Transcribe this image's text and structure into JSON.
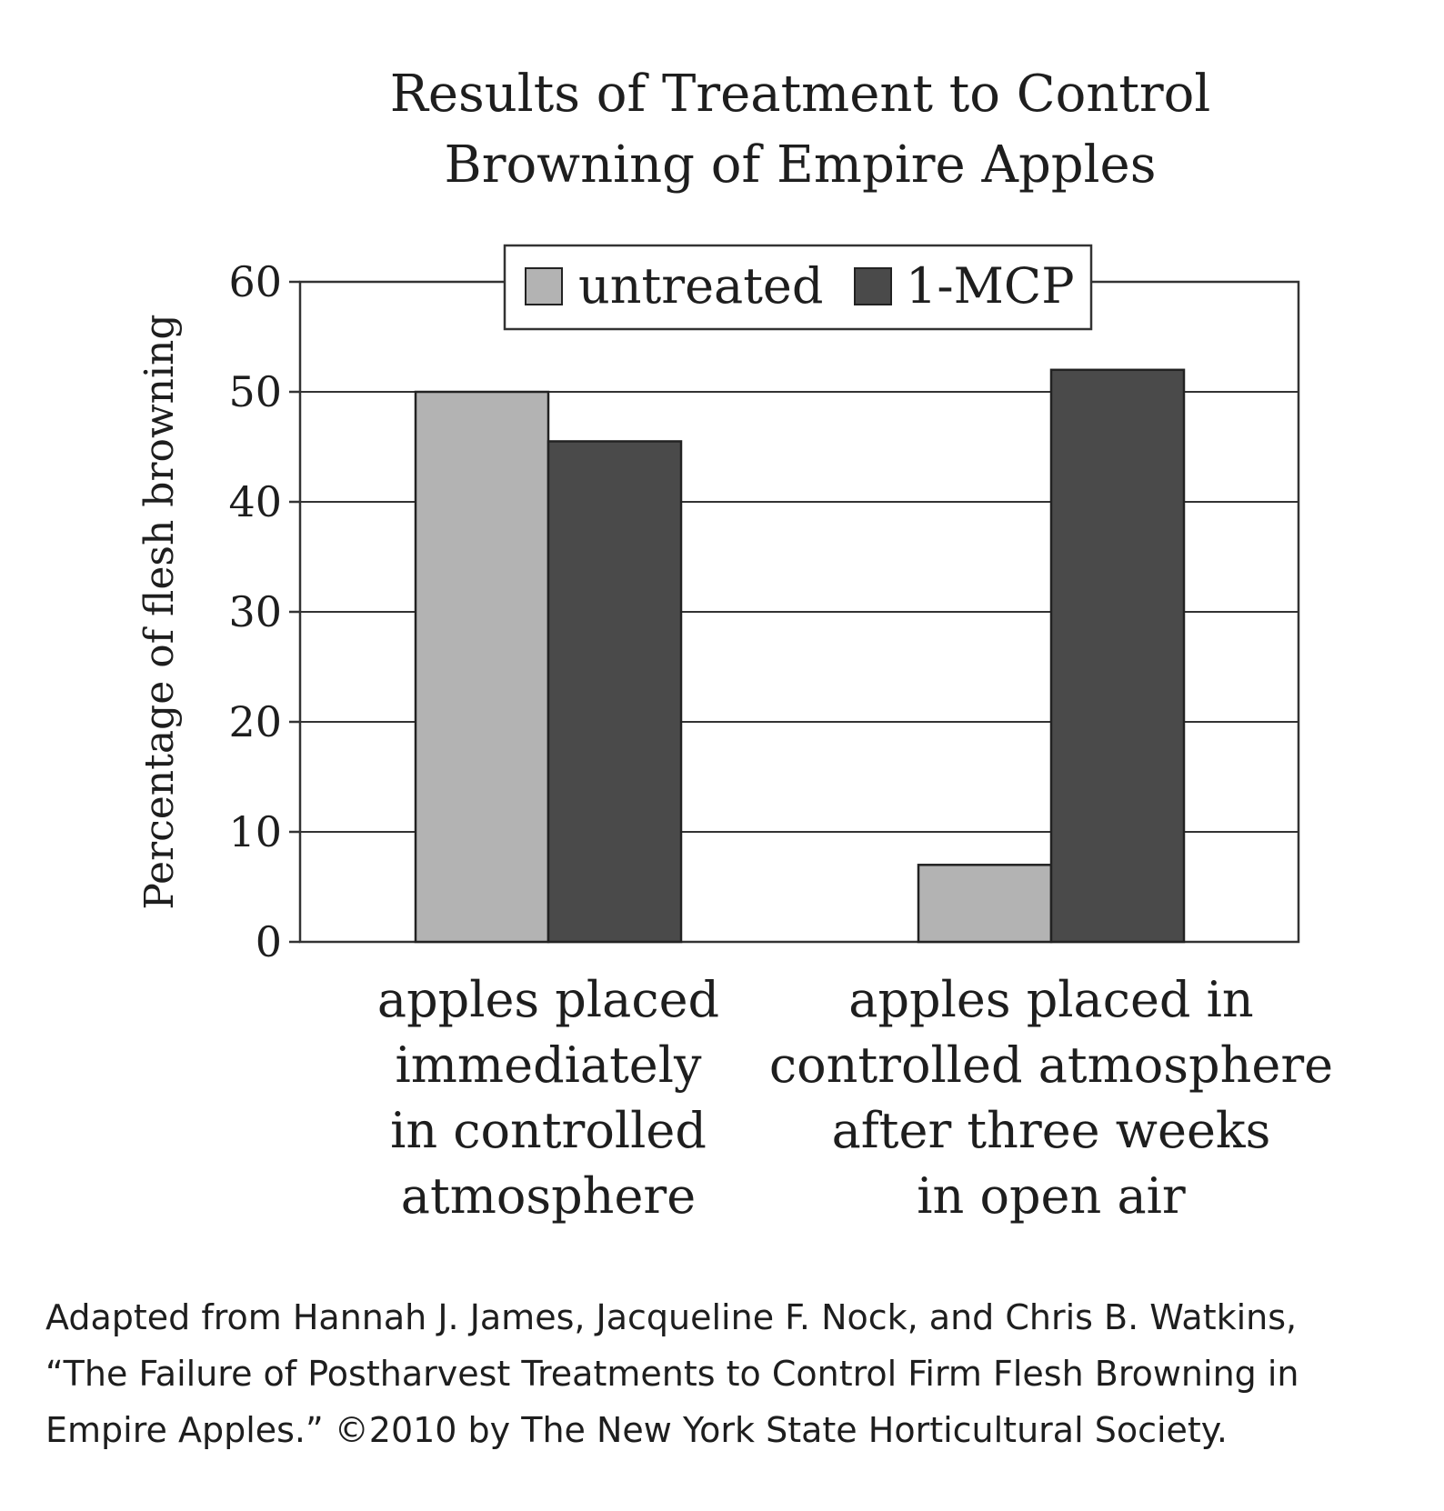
{
  "chart_data": {
    "type": "bar",
    "title_lines": [
      "Results of Treatment to Control",
      "Browning of Empire Apples"
    ],
    "ylabel": "Percentage of flesh browning",
    "ylim": [
      0,
      60
    ],
    "yticks": [
      "0",
      "10",
      "20",
      "30",
      "40",
      "50",
      "60"
    ],
    "categories": [
      [
        "apples placed",
        "immediately",
        "in controlled",
        "atmosphere"
      ],
      [
        "apples placed in",
        "controlled atmosphere",
        "after three weeks",
        "in open air"
      ]
    ],
    "series": [
      {
        "name": "untreated",
        "color": "#b3b3b3",
        "values": [
          50,
          7
        ]
      },
      {
        "name": "1-MCP",
        "color": "#4a4a4a",
        "values": [
          45.5,
          52
        ]
      }
    ],
    "grid": true,
    "legend_position": "top-center"
  },
  "source_lines": [
    "Adapted from Hannah J. James, Jacqueline F. Nock, and Chris B. Watkins,",
    "“The Failure of Postharvest Treatments to Control Firm Flesh Browning in",
    "Empire Apples.” ©2010 by The New York State Horticultural Society."
  ]
}
